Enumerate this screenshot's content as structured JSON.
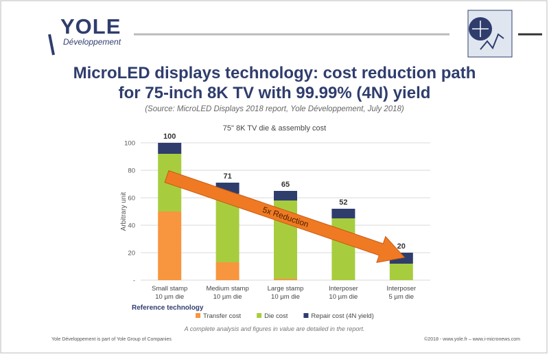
{
  "header": {
    "logo_name": "YOLE",
    "logo_sub": "Développement",
    "title": "MicroLED displays technology: cost reduction path\nfor 75-inch 8K TV with 99.99% (4N) yield",
    "source": "(Source: MicroLED Displays 2018 report, Yole Développement, July 2018)"
  },
  "chart_data": {
    "type": "stacked_bar",
    "title": "75\" 8K TV die & assembly cost",
    "y_label": "Arbitrary unit",
    "x_label": "Reference technology",
    "categories": [
      "Small stamp\n10 µm die",
      "Medium stamp\n10 µm die",
      "Large stamp\n10 µm die",
      "Interposer\n10 µm die",
      "Interposer\n5 µm die"
    ],
    "series": [
      {
        "name": "Transfer cost",
        "color": "#f7963f",
        "values": [
          50,
          13,
          1,
          0,
          0
        ]
      },
      {
        "name": "Die cost",
        "color": "#a7cd3f",
        "values": [
          42,
          50,
          57,
          45,
          12
        ]
      },
      {
        "name": "Repair cost (4N yield)",
        "color": "#2f3d6d",
        "values": [
          8,
          8,
          7,
          7,
          8
        ]
      }
    ],
    "total_labels": [
      100,
      71,
      65,
      52,
      20
    ],
    "ylim": [
      0,
      100
    ],
    "yticks": [
      {
        "value": 0,
        "label": "-"
      },
      20,
      40,
      60,
      80,
      100
    ],
    "grid": true,
    "annotation": "5x Reduction",
    "legend": "bottom"
  },
  "note": "A complete analysis and figures in value are detailed in the report.",
  "footer": {
    "left": "Yole Développement is part of Yole Group of Companies",
    "right": "©2018 - www.yole.fr – www.i-micronews.com"
  }
}
